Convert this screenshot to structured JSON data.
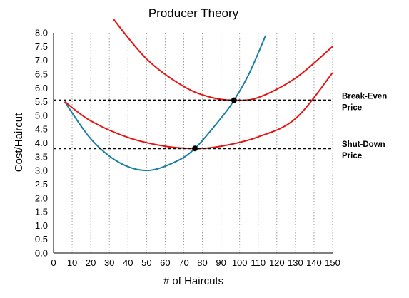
{
  "chart_data": {
    "type": "line",
    "title": "Producer Theory",
    "xlabel": "# of Haircuts",
    "ylabel": "Cost/Haircut",
    "xlim": [
      0,
      150
    ],
    "ylim": [
      0,
      8
    ],
    "x_ticks": [
      "0",
      "10",
      "20",
      "30",
      "40",
      "50",
      "60",
      "70",
      "80",
      "90",
      "100",
      "110",
      "120",
      "130",
      "140",
      "150"
    ],
    "y_ticks": [
      "0.0",
      "0.5",
      "1.0",
      "1.5",
      "2.0",
      "2.5",
      "3.0",
      "3.5",
      "4.0",
      "4.5",
      "5.0",
      "5.5",
      "6.0",
      "6.5",
      "7.0",
      "7.5",
      "8.0"
    ],
    "grid": {
      "vertical": true,
      "horizontal": false
    },
    "series": [
      {
        "color": "#1a7fa0",
        "x": [
          6,
          20,
          35,
          50,
          65,
          76,
          90,
          97,
          105,
          114
        ],
        "y": [
          5.5,
          4.15,
          3.3,
          3.0,
          3.3,
          3.8,
          4.9,
          5.55,
          6.5,
          7.9
        ]
      },
      {
        "color": "#e81414",
        "x": [
          6,
          20,
          40,
          60,
          76,
          90,
          110,
          130,
          150
        ],
        "y": [
          5.5,
          4.8,
          4.2,
          3.88,
          3.8,
          3.88,
          4.22,
          4.88,
          6.55
        ]
      },
      {
        "color": "#e81414",
        "x": [
          31,
          50,
          70,
          85,
          97,
          110,
          130,
          150
        ],
        "y": [
          8.6,
          7.05,
          6.05,
          5.65,
          5.55,
          5.65,
          6.35,
          7.5
        ]
      }
    ],
    "reference_lines": [
      {
        "y": 5.55,
        "style": "dashed",
        "label_lines": [
          "Break-Even",
          "Price"
        ]
      },
      {
        "y": 3.8,
        "style": "dashed",
        "label_lines": [
          "Shut-Down",
          "Price"
        ]
      }
    ],
    "points": [
      {
        "x": 97,
        "y": 5.55
      },
      {
        "x": 76,
        "y": 3.8
      }
    ]
  }
}
